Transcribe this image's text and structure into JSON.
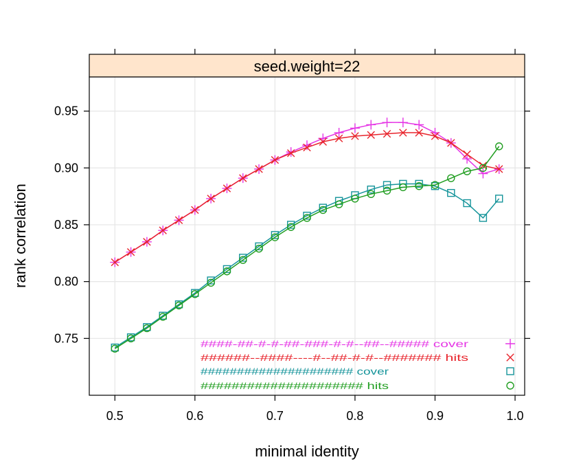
{
  "chart_data": {
    "type": "line",
    "strip_label": "seed.weight=22",
    "xlabel": "minimal identity",
    "ylabel": "rank correlation",
    "xlim": [
      0.468,
      1.012
    ],
    "ylim": [
      0.7,
      0.98
    ],
    "x_ticks": [
      0.5,
      0.6,
      0.7,
      0.8,
      0.9,
      1.0
    ],
    "x_tick_labels": [
      "0.5",
      "0.6",
      "0.7",
      "0.8",
      "0.9",
      "1.0"
    ],
    "y_ticks": [
      0.75,
      0.8,
      0.85,
      0.9,
      0.95
    ],
    "y_tick_labels": [
      "0.75",
      "0.80",
      "0.85",
      "0.90",
      "0.95"
    ],
    "grid": true,
    "x": [
      0.5,
      0.52,
      0.54,
      0.56,
      0.58,
      0.6,
      0.62,
      0.64,
      0.66,
      0.68,
      0.7,
      0.72,
      0.74,
      0.76,
      0.78,
      0.8,
      0.82,
      0.84,
      0.86,
      0.88,
      0.9,
      0.92,
      0.94,
      0.96,
      0.98
    ],
    "series": [
      {
        "name": "####-##-#-#-##-###-#-#--##--##### cover",
        "color": "#e535e5",
        "marker": "plus",
        "values": [
          0.817,
          0.826,
          0.835,
          0.845,
          0.854,
          0.863,
          0.873,
          0.882,
          0.891,
          0.899,
          0.907,
          0.914,
          0.92,
          0.926,
          0.931,
          0.935,
          0.938,
          0.94,
          0.94,
          0.938,
          0.931,
          0.922,
          0.908,
          0.895,
          0.899
        ]
      },
      {
        "name": "######--####----#--##-#-#--####### hits",
        "color": "#e8242c",
        "marker": "cross",
        "values": [
          0.817,
          0.826,
          0.835,
          0.845,
          0.854,
          0.863,
          0.873,
          0.882,
          0.891,
          0.899,
          0.907,
          0.913,
          0.918,
          0.923,
          0.926,
          0.928,
          0.929,
          0.93,
          0.931,
          0.931,
          0.928,
          0.922,
          0.912,
          0.902,
          0.899
        ]
      },
      {
        "name": "##################### cover",
        "color": "#15949a",
        "marker": "square",
        "values": [
          0.742,
          0.751,
          0.76,
          0.77,
          0.78,
          0.79,
          0.801,
          0.811,
          0.821,
          0.831,
          0.841,
          0.85,
          0.858,
          0.865,
          0.871,
          0.876,
          0.881,
          0.885,
          0.886,
          0.886,
          0.884,
          0.878,
          0.869,
          0.856,
          0.873
        ]
      },
      {
        "name": "##################### hits",
        "color": "#219e21",
        "marker": "circle",
        "values": [
          0.741,
          0.75,
          0.759,
          0.769,
          0.779,
          0.789,
          0.799,
          0.809,
          0.819,
          0.829,
          0.839,
          0.848,
          0.856,
          0.863,
          0.868,
          0.873,
          0.877,
          0.88,
          0.883,
          0.884,
          0.885,
          0.891,
          0.897,
          0.9,
          0.919
        ]
      }
    ],
    "legend_position": "bottom-right"
  }
}
